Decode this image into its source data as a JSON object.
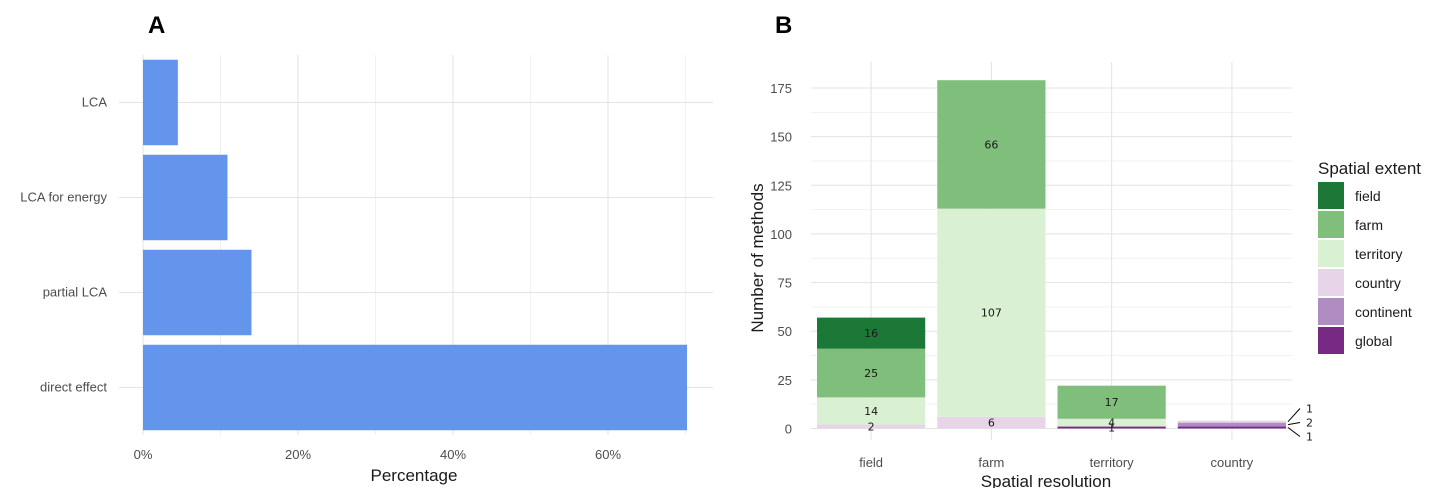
{
  "chart_data": [
    {
      "type": "bar",
      "orientation": "horizontal",
      "panel_label": "A",
      "categories": [
        "LCA",
        "LCA for energy",
        "partial LCA",
        "direct effect"
      ],
      "values": [
        4.5,
        10.9,
        14.0,
        70.2
      ],
      "xlabel": "Percentage",
      "ylabel": "",
      "xlim": [
        0,
        72
      ],
      "xticks": [
        0,
        20,
        40,
        60
      ],
      "xtick_labels": [
        "0%",
        "20%",
        "40%",
        "60%"
      ],
      "grid": true,
      "bar_color": "#6495ed"
    },
    {
      "type": "bar",
      "stacked": true,
      "panel_label": "B",
      "categories": [
        "field",
        "farm",
        "territory",
        "country"
      ],
      "series": [
        {
          "name": "global",
          "color": "#762a83",
          "values": [
            0,
            0,
            1,
            1
          ]
        },
        {
          "name": "continent",
          "color": "#af8dc3",
          "values": [
            0,
            0,
            0,
            2
          ]
        },
        {
          "name": "country",
          "color": "#e7d4e8",
          "values": [
            2,
            6,
            0,
            1
          ]
        },
        {
          "name": "territory",
          "color": "#d9f0d3",
          "values": [
            14,
            107,
            4,
            0
          ]
        },
        {
          "name": "farm",
          "color": "#7fbf7b",
          "values": [
            25,
            66,
            17,
            0
          ]
        },
        {
          "name": "field",
          "color": "#1b7837",
          "values": [
            16,
            0,
            0,
            0
          ]
        }
      ],
      "xlabel": "Spatial resolution",
      "ylabel": "Number of methods",
      "ylim": [
        0,
        180
      ],
      "yticks": [
        0,
        25,
        50,
        75,
        100,
        125,
        150,
        175
      ],
      "legend_title": "Spatial extent",
      "legend_order": [
        "field",
        "farm",
        "territory",
        "country",
        "continent",
        "global"
      ],
      "legend_position": "right",
      "grid": true
    }
  ]
}
